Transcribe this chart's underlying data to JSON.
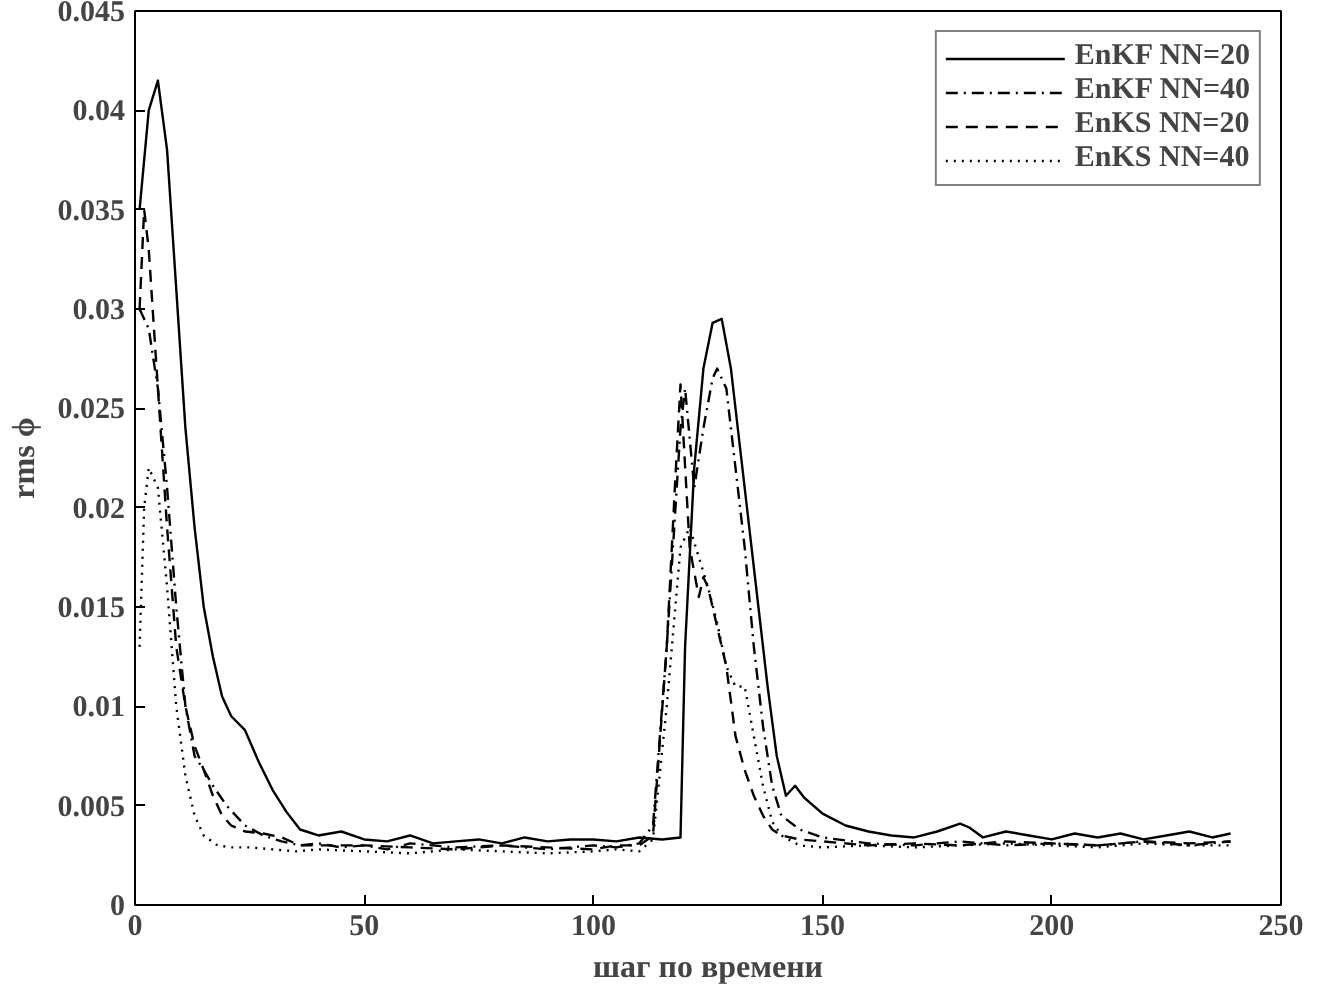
{
  "chart_data": {
    "type": "line",
    "xlabel": "шаг по времени",
    "ylabel": "rms ϕ",
    "xlim": [
      0,
      250
    ],
    "ylim": [
      0,
      0.045
    ],
    "xticks": [
      0,
      50,
      100,
      150,
      200,
      250
    ],
    "yticks": [
      0,
      0.005,
      0.01,
      0.015,
      0.02,
      0.025,
      0.03,
      0.035,
      0.04,
      0.045
    ],
    "grid": false,
    "legend": "top right",
    "marker": "none",
    "series": [
      {
        "name": "EnKF NN=20",
        "color": "#000000",
        "line_style": "solid",
        "x": [
          1,
          3,
          5,
          7,
          9,
          11,
          13,
          15,
          17,
          19,
          21,
          24,
          27,
          30,
          33,
          36,
          40,
          45,
          50,
          55,
          60,
          65,
          70,
          75,
          80,
          85,
          90,
          95,
          100,
          105,
          110,
          115,
          119,
          120,
          122,
          124,
          126,
          128,
          130,
          132,
          134,
          136,
          138,
          140,
          142,
          144,
          146,
          150,
          155,
          160,
          165,
          170,
          175,
          180,
          182,
          185,
          190,
          195,
          200,
          205,
          210,
          215,
          220,
          225,
          230,
          235,
          239
        ],
        "values": [
          0.035,
          0.04,
          0.0415,
          0.038,
          0.031,
          0.024,
          0.019,
          0.015,
          0.0125,
          0.0105,
          0.0095,
          0.0088,
          0.0072,
          0.0058,
          0.0047,
          0.0038,
          0.0035,
          0.0037,
          0.0033,
          0.0032,
          0.0035,
          0.0031,
          0.0032,
          0.0033,
          0.0031,
          0.0034,
          0.0032,
          0.0033,
          0.0033,
          0.0032,
          0.0034,
          0.0033,
          0.0034,
          0.013,
          0.022,
          0.027,
          0.0293,
          0.0295,
          0.027,
          0.023,
          0.019,
          0.015,
          0.011,
          0.0075,
          0.0055,
          0.006,
          0.0054,
          0.0046,
          0.004,
          0.0037,
          0.0035,
          0.0034,
          0.0037,
          0.0041,
          0.0039,
          0.0034,
          0.0037,
          0.0035,
          0.0033,
          0.0036,
          0.0034,
          0.0036,
          0.0033,
          0.0035,
          0.0037,
          0.0034,
          0.0036
        ]
      },
      {
        "name": "EnKF NN=40",
        "color": "#000000",
        "line_style": "dashdot",
        "x": [
          1,
          3,
          5,
          7,
          9,
          11,
          13,
          15,
          17,
          20,
          24,
          28,
          32,
          36,
          40,
          45,
          50,
          55,
          60,
          70,
          80,
          90,
          100,
          105,
          110,
          113,
          116,
          119,
          120,
          122,
          124,
          126,
          127,
          129,
          131,
          133,
          135,
          137,
          139,
          141,
          145,
          150,
          160,
          170,
          180,
          190,
          200,
          210,
          220,
          230,
          239
        ],
        "values": [
          0.03,
          0.029,
          0.026,
          0.021,
          0.015,
          0.01,
          0.0075,
          0.0068,
          0.006,
          0.005,
          0.004,
          0.0035,
          0.0032,
          0.003,
          0.0031,
          0.0029,
          0.003,
          0.0028,
          0.0031,
          0.0029,
          0.003,
          0.0028,
          0.003,
          0.0029,
          0.0031,
          0.004,
          0.013,
          0.024,
          0.026,
          0.021,
          0.024,
          0.0265,
          0.027,
          0.026,
          0.022,
          0.018,
          0.013,
          0.009,
          0.006,
          0.0045,
          0.0038,
          0.0034,
          0.0031,
          0.003,
          0.0032,
          0.003,
          0.0031,
          0.003,
          0.0032,
          0.003,
          0.0032
        ]
      },
      {
        "name": "EnKS NN=20",
        "color": "#000000",
        "line_style": "dashed",
        "x": [
          1,
          2,
          3,
          5,
          7,
          9,
          11,
          13,
          15,
          17,
          19,
          21,
          24,
          28,
          32,
          36,
          40,
          50,
          60,
          70,
          80,
          90,
          100,
          105,
          110,
          113,
          116,
          118,
          119,
          121,
          123,
          124,
          125,
          127,
          129,
          131,
          133,
          135,
          137,
          139,
          141,
          145,
          150,
          160,
          170,
          180,
          190,
          200,
          210,
          220,
          230,
          239
        ],
        "values": [
          0.03,
          0.035,
          0.033,
          0.026,
          0.019,
          0.013,
          0.01,
          0.008,
          0.0068,
          0.0055,
          0.0045,
          0.004,
          0.0037,
          0.0036,
          0.0034,
          0.003,
          0.003,
          0.003,
          0.0029,
          0.0028,
          0.003,
          0.0029,
          0.0028,
          0.003,
          0.003,
          0.0035,
          0.013,
          0.022,
          0.0262,
          0.018,
          0.0155,
          0.0165,
          0.016,
          0.014,
          0.012,
          0.0085,
          0.0068,
          0.0055,
          0.0045,
          0.0038,
          0.0035,
          0.0033,
          0.0032,
          0.003,
          0.0031,
          0.003,
          0.0032,
          0.0031,
          0.003,
          0.0032,
          0.0031,
          0.0032
        ]
      },
      {
        "name": "EnKS NN=40",
        "color": "#000000",
        "line_style": "dotted",
        "x": [
          1,
          2,
          3,
          5,
          7,
          9,
          11,
          13,
          15,
          18,
          21,
          25,
          30,
          35,
          40,
          50,
          60,
          70,
          80,
          90,
          100,
          105,
          110,
          113,
          116,
          119,
          121,
          123,
          125,
          127,
          129,
          131,
          133,
          135,
          137,
          139,
          141,
          145,
          150,
          160,
          170,
          180,
          190,
          200,
          210,
          220,
          230,
          239
        ],
        "values": [
          0.013,
          0.02,
          0.022,
          0.021,
          0.016,
          0.01,
          0.0065,
          0.0045,
          0.0035,
          0.003,
          0.0029,
          0.0029,
          0.0028,
          0.0027,
          0.0028,
          0.0027,
          0.0026,
          0.0028,
          0.0027,
          0.0026,
          0.0027,
          0.0028,
          0.0027,
          0.0033,
          0.01,
          0.018,
          0.019,
          0.0175,
          0.016,
          0.0142,
          0.012,
          0.011,
          0.011,
          0.0085,
          0.006,
          0.0042,
          0.0035,
          0.003,
          0.0029,
          0.003,
          0.0029,
          0.003,
          0.0031,
          0.003,
          0.0029,
          0.0031,
          0.003,
          0.003
        ]
      }
    ]
  }
}
